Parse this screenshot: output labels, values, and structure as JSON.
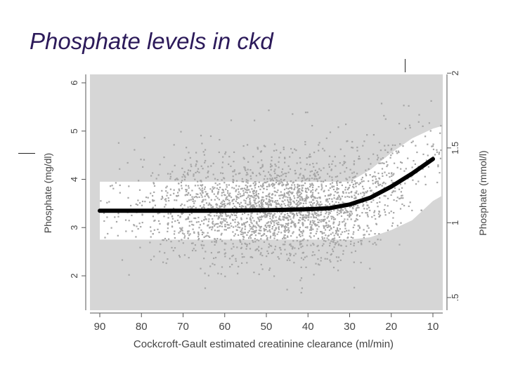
{
  "slide": {
    "title": "Phosphate levels in ckd"
  },
  "chart_data": {
    "type": "scatter",
    "xlabel": "Cockcroft-Gault estimated creatinine clearance (ml/min)",
    "ylabel_left": "Phosphate (mg/dl)",
    "ylabel_right": "Phosphate (mmol/l)",
    "x_ticks": [
      90,
      80,
      70,
      60,
      50,
      40,
      30,
      20,
      10
    ],
    "x_axis_reversed": true,
    "xlim": [
      92,
      8
    ],
    "y_ticks_left": [
      2,
      3,
      4,
      5,
      6
    ],
    "ylim_left": [
      1.4,
      6.2
    ],
    "y_ticks_right": [
      ".5",
      "1",
      "1.5",
      "2"
    ],
    "y_ticks_right_values_mgdl": [
      1.55,
      3.1,
      4.65,
      6.2
    ],
    "normal_range_band": [
      {
        "x": 90,
        "low": 2.75,
        "high": 3.95
      },
      {
        "x": 40,
        "low": 2.75,
        "high": 3.95
      },
      {
        "x": 30,
        "low": 2.75,
        "high": 3.95
      },
      {
        "x": 25,
        "low": 2.8,
        "high": 4.2
      },
      {
        "x": 20,
        "low": 2.95,
        "high": 4.55
      },
      {
        "x": 15,
        "low": 3.15,
        "high": 4.85
      },
      {
        "x": 10,
        "low": 3.55,
        "high": 5.05
      },
      {
        "x": 8,
        "low": 3.65,
        "high": 5.1
      }
    ],
    "trend_line": {
      "x": [
        90,
        80,
        70,
        60,
        50,
        40,
        35,
        30,
        25,
        20,
        15,
        10
      ],
      "y": [
        3.35,
        3.35,
        3.35,
        3.35,
        3.36,
        3.38,
        3.4,
        3.48,
        3.62,
        3.85,
        4.12,
        4.42
      ]
    },
    "scatter_points": {
      "count_approx": 2600,
      "distribution": "dense cloud centered ~3.35 mg/dl for clearance 90-35, rising toward ~4.4 at clearance 10"
    },
    "grid": false,
    "colors": {
      "background": "#d6d6d6",
      "band": "#ffffff",
      "points": "#a6a6a6",
      "trend": "#000000",
      "title": "#2c1a5a"
    }
  }
}
